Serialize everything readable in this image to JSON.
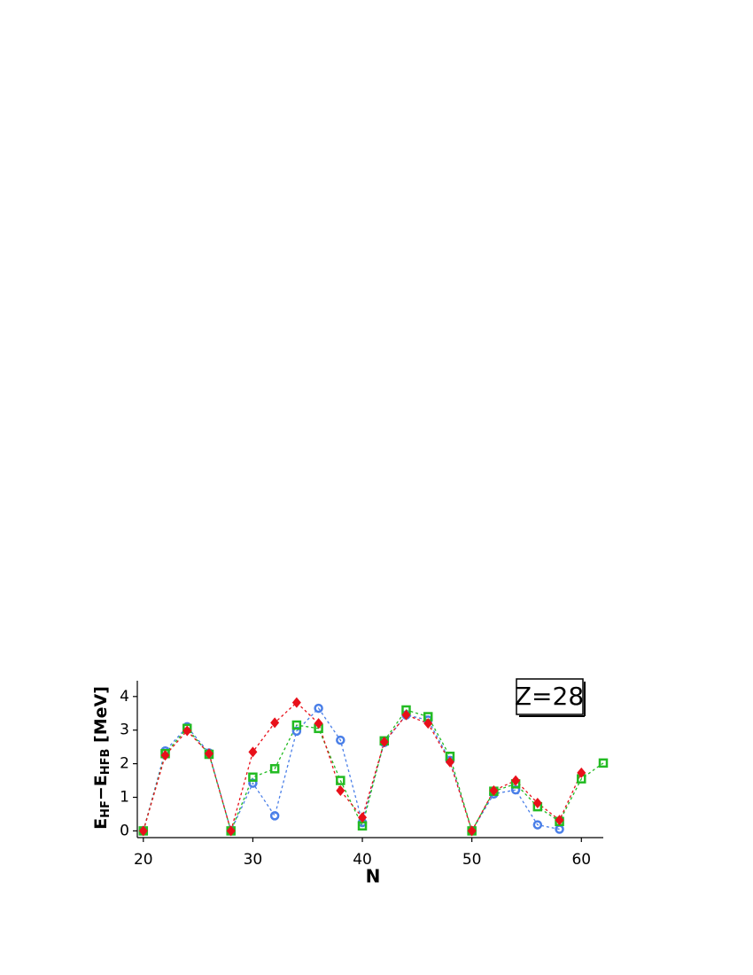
{
  "chart_data": {
    "type": "line",
    "xlabel": "N",
    "ylabel_parts": [
      "E",
      "HF",
      "−E",
      "HFB",
      " [MeV]"
    ],
    "annotation": "Z=28",
    "x": [
      20,
      22,
      24,
      26,
      28,
      30,
      32,
      34,
      36,
      38,
      40,
      42,
      44,
      46,
      48,
      50,
      52,
      54,
      56,
      58,
      60,
      62
    ],
    "series": [
      {
        "color": "#4a7fe8",
        "marker": "circle",
        "values": [
          0,
          2.38,
          3.1,
          2.32,
          0,
          1.42,
          0.45,
          2.97,
          3.65,
          2.7,
          0.25,
          2.63,
          3.45,
          3.3,
          2.1,
          0,
          1.1,
          1.22,
          0.18,
          0.05,
          null,
          null
        ]
      },
      {
        "color": "#22bb22",
        "marker": "square",
        "values": [
          0,
          2.3,
          3.05,
          2.28,
          0,
          1.6,
          1.85,
          3.15,
          3.05,
          1.5,
          0.15,
          2.68,
          3.6,
          3.4,
          2.22,
          0,
          1.18,
          1.4,
          0.72,
          0.28,
          1.55,
          2.02
        ]
      },
      {
        "color": "#e8101a",
        "marker": "diamond",
        "values": [
          0,
          2.25,
          2.98,
          2.3,
          0,
          2.35,
          3.22,
          3.82,
          3.2,
          1.2,
          0.4,
          2.65,
          3.45,
          3.2,
          2.05,
          0,
          1.2,
          1.5,
          0.83,
          0.32,
          1.73,
          null
        ]
      }
    ],
    "xlim": [
      19.45,
      62
    ],
    "ylim": [
      -0.2,
      4.47
    ],
    "xticks": [
      20,
      30,
      40,
      50,
      60
    ],
    "yticks": [
      0,
      1,
      2,
      3,
      4
    ]
  }
}
